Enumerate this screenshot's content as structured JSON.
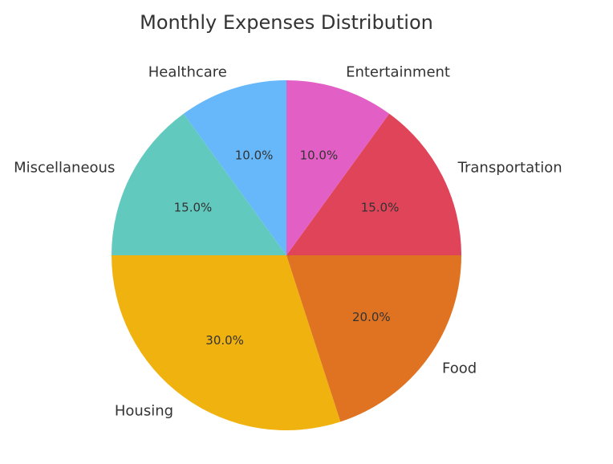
{
  "chart_data": {
    "type": "pie",
    "title": "Monthly Expenses Distribution",
    "start_angle_deg": 90,
    "direction": "counterclockwise",
    "slices": [
      {
        "label": "Healthcare",
        "value": 10,
        "pct_label": "10.0%",
        "color": "#66b8fb"
      },
      {
        "label": "Miscellaneous",
        "value": 15,
        "pct_label": "15.0%",
        "color": "#62c9bf"
      },
      {
        "label": "Housing",
        "value": 30,
        "pct_label": "30.0%",
        "color": "#f0b20f"
      },
      {
        "label": "Food",
        "value": 20,
        "pct_label": "20.0%",
        "color": "#e07322"
      },
      {
        "label": "Transportation",
        "value": 15,
        "pct_label": "15.0%",
        "color": "#df4458"
      },
      {
        "label": "Entertainment",
        "value": 10,
        "pct_label": "10.0%",
        "color": "#e260c5"
      }
    ]
  }
}
